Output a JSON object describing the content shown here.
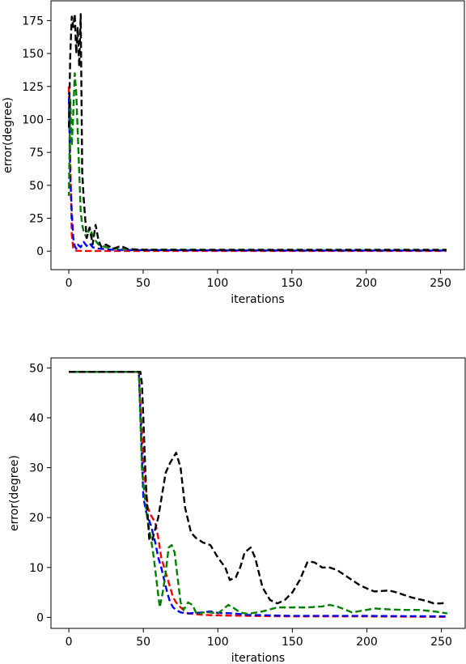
{
  "chart_data": [
    {
      "type": "line",
      "xlabel": "iterations",
      "ylabel": "error(degree)",
      "xlim": [
        -12,
        266
      ],
      "ylim": [
        -14,
        190
      ],
      "xticks": [
        0,
        50,
        100,
        150,
        200,
        250
      ],
      "yticks": [
        0,
        25,
        50,
        75,
        100,
        125,
        150,
        175
      ],
      "grid": false,
      "series": [
        {
          "color": "#ff0000",
          "x": [
            0,
            1,
            2,
            3,
            4,
            6,
            10,
            20,
            50,
            100,
            150,
            200,
            254
          ],
          "y": [
            125,
            70,
            12,
            2,
            0.5,
            0.3,
            0.2,
            0.2,
            0.2,
            0.2,
            0.2,
            0.2,
            0.2
          ]
        },
        {
          "color": "#0000ff",
          "x": [
            0,
            1,
            2,
            3,
            4,
            5,
            6,
            8,
            10,
            12,
            14,
            16,
            20,
            30,
            50,
            100,
            150,
            200,
            254
          ],
          "y": [
            120,
            55,
            30,
            10,
            4,
            2,
            5,
            3,
            7,
            4,
            6,
            3,
            2,
            1,
            0.8,
            0.6,
            0.5,
            0.5,
            0.5
          ],
          "dash_offset": 6
        },
        {
          "color": "#008000",
          "x": [
            0,
            1,
            2,
            3,
            4,
            5,
            6,
            7,
            8,
            9,
            10,
            12,
            14,
            16,
            18,
            20,
            25,
            30,
            50,
            100,
            150,
            200,
            254
          ],
          "y": [
            42,
            115,
            80,
            105,
            135,
            120,
            90,
            60,
            30,
            20,
            15,
            10,
            18,
            12,
            8,
            5,
            3,
            2,
            1.2,
            1,
            1,
            1,
            1
          ],
          "dash_offset": 3
        },
        {
          "color": "#000000",
          "x": [
            0,
            1,
            2,
            3,
            4,
            5,
            6,
            7,
            8,
            9,
            10,
            11,
            12,
            14,
            16,
            18,
            20,
            22,
            25,
            30,
            35,
            40,
            50,
            100,
            150,
            200,
            254
          ],
          "y": [
            92,
            150,
            178,
            170,
            180,
            150,
            170,
            140,
            180,
            60,
            40,
            25,
            10,
            18,
            5,
            20,
            8,
            3,
            5,
            2,
            4,
            1.5,
            1,
            1,
            1,
            1,
            1
          ],
          "dash_offset": 9
        }
      ]
    },
    {
      "type": "line",
      "xlabel": "iterations",
      "ylabel": "error(degree)",
      "xlim": [
        -12,
        266
      ],
      "ylim": [
        -2.2,
        52
      ],
      "xticks": [
        0,
        50,
        100,
        150,
        200,
        250
      ],
      "yticks": [
        0,
        10,
        20,
        30,
        40,
        50
      ],
      "grid": false,
      "series": [
        {
          "color": "#ff0000",
          "x": [
            0,
            47,
            50,
            53,
            55,
            58,
            60,
            62,
            65,
            68,
            70,
            72,
            75,
            78,
            80,
            90,
            100,
            120,
            150,
            200,
            254
          ],
          "y": [
            49.2,
            49.2,
            31,
            22,
            20.5,
            19,
            16,
            12,
            9,
            6,
            4,
            3,
            2,
            1.2,
            0.8,
            0.5,
            0.4,
            0.3,
            0.2,
            0.2,
            0.1
          ]
        },
        {
          "color": "#0000ff",
          "x": [
            0,
            47,
            50,
            52,
            55,
            58,
            60,
            62,
            64,
            66,
            68,
            70,
            72,
            75,
            80,
            90,
            95,
            100,
            110,
            120,
            150,
            200,
            254
          ],
          "y": [
            49.2,
            49.2,
            24,
            21,
            18.5,
            15,
            12,
            10,
            7.5,
            5,
            3,
            2,
            1.5,
            1,
            0.8,
            1,
            1.2,
            0.9,
            0.8,
            0.5,
            0.3,
            0.3,
            0.2
          ],
          "dash_offset": 6
        },
        {
          "color": "#008000",
          "x": [
            0,
            47,
            49,
            51,
            53,
            55,
            57,
            59,
            61,
            63,
            65,
            67,
            69,
            71,
            73,
            75,
            77,
            80,
            83,
            86,
            90,
            95,
            100,
            103,
            107,
            110,
            115,
            120,
            130,
            140,
            150,
            160,
            170,
            175,
            180,
            190,
            200,
            205,
            215,
            225,
            235,
            245,
            254
          ],
          "y": [
            49.2,
            49.2,
            30,
            24,
            19,
            16,
            12,
            7,
            2,
            5,
            9,
            14,
            14.5,
            13,
            8,
            3,
            1.5,
            3,
            2.5,
            0.5,
            1,
            1,
            0.8,
            1.5,
            2.5,
            2,
            1,
            0.7,
            1.2,
            2,
            2,
            2,
            2.2,
            2.5,
            2.2,
            1,
            1.5,
            1.8,
            1.6,
            1.5,
            1.5,
            1.2,
            0.8
          ],
          "dash_offset": 3
        },
        {
          "color": "#000000",
          "x": [
            0,
            48,
            49,
            50,
            51,
            52,
            53,
            54,
            56,
            60,
            65,
            68,
            70,
            72,
            75,
            78,
            82,
            85,
            90,
            95,
            100,
            105,
            108,
            112,
            115,
            118,
            122,
            125,
            130,
            135,
            140,
            145,
            150,
            155,
            160,
            162,
            165,
            170,
            175,
            180,
            185,
            190,
            195,
            200,
            205,
            210,
            215,
            220,
            225,
            230,
            240,
            245,
            250,
            253
          ],
          "y": [
            49.2,
            49.2,
            47,
            40,
            32,
            25,
            20,
            15.5,
            15.5,
            20,
            29,
            31,
            32,
            33,
            30,
            22,
            17,
            16,
            15,
            14.5,
            12,
            10,
            7.5,
            8,
            10,
            13,
            14,
            12,
            6,
            3.5,
            2.8,
            3.5,
            5,
            7.5,
            11,
            11.2,
            11,
            10,
            10,
            9.5,
            8.5,
            7.5,
            6.5,
            5.8,
            5.2,
            5.3,
            5.4,
            5,
            4.5,
            4,
            3.3,
            2.8,
            2.8,
            3
          ]
        }
      ]
    }
  ]
}
